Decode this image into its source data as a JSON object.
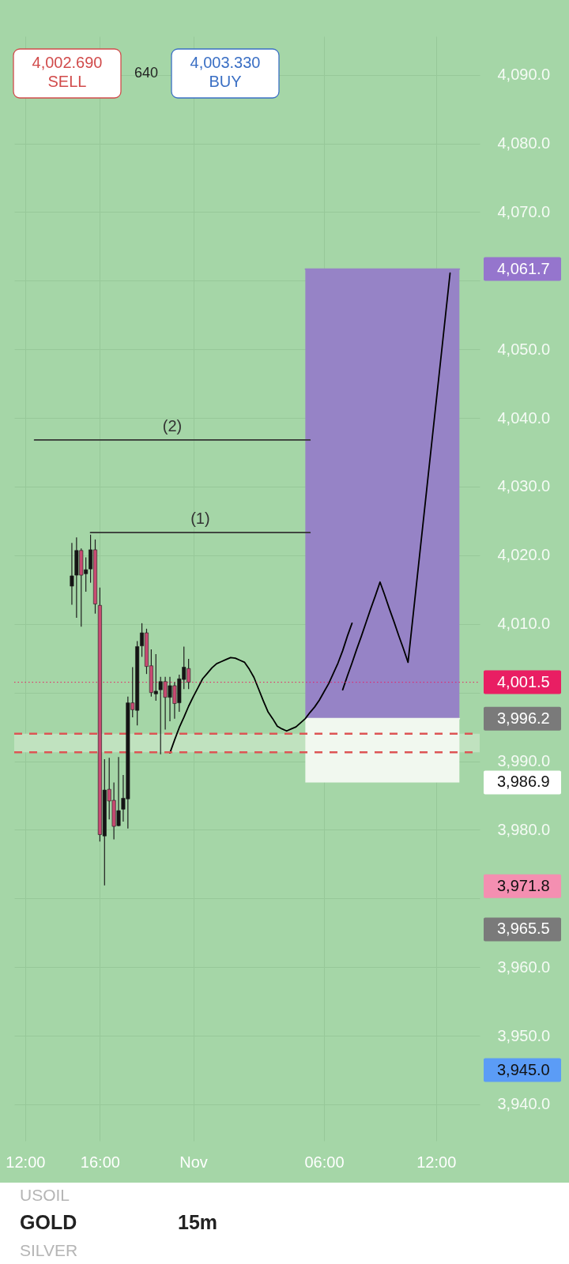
{
  "chart_data": {
    "type": "candlestick",
    "categories": [
      null,
      "12:00",
      null,
      null,
      null,
      null,
      null,
      null,
      null,
      null,
      null,
      null,
      null,
      null,
      null,
      null,
      null,
      "16:00",
      null,
      null,
      null,
      null,
      null,
      null,
      null,
      null,
      null,
      null,
      null,
      null,
      null,
      null,
      null,
      null,
      null,
      null,
      null,
      "Nov",
      null,
      null,
      null,
      null,
      null,
      null,
      null,
      null,
      null,
      null,
      null,
      null,
      null,
      null,
      null,
      null,
      null,
      null,
      null,
      null,
      null,
      null,
      null,
      null,
      null,
      null,
      null,
      "06:00",
      null,
      null,
      null,
      null,
      null,
      null,
      null,
      null,
      null,
      null,
      null,
      null,
      null,
      null,
      null,
      null,
      null,
      null,
      null,
      null,
      null,
      null,
      null,
      "12:00",
      null,
      null,
      null,
      null,
      null,
      null,
      null,
      null
    ],
    "ohlc": [
      null,
      null,
      null,
      null,
      null,
      null,
      null,
      null,
      null,
      null,
      null,
      [
        4015.5,
        4021.8,
        4012.8,
        4017.0
      ],
      [
        4017.1,
        4022.6,
        4010.9,
        4020.7
      ],
      [
        4020.7,
        4021.0,
        4009.6,
        4017.1
      ],
      [
        4017.3,
        4019.7,
        4014.7,
        4017.9
      ],
      [
        4018.0,
        4023.0,
        4016.0,
        4020.8
      ],
      [
        4020.8,
        4022.3,
        4011.5,
        4012.9
      ],
      [
        4012.7,
        4015.3,
        3978.3,
        3979.3
      ],
      [
        3979.1,
        3990.3,
        3971.9,
        3985.8
      ],
      [
        3985.9,
        3990.5,
        3981.5,
        3984.2
      ],
      [
        3984.3,
        3986.9,
        3978.6,
        3980.5
      ],
      [
        3980.6,
        3990.6,
        3980.5,
        3982.8
      ],
      [
        3983.0,
        3988.0,
        3981.2,
        3984.6
      ],
      [
        3984.5,
        3999.4,
        3980.2,
        3998.5
      ],
      [
        3998.5,
        4003.7,
        3996.4,
        3997.5
      ],
      [
        3997.4,
        4007.5,
        3995.2,
        4006.7
      ],
      [
        4006.8,
        4010.1,
        4005.2,
        4008.7
      ],
      [
        4008.7,
        4009.3,
        4002.7,
        4003.8
      ],
      [
        4003.9,
        4006.3,
        3999.4,
        4000.0
      ],
      [
        3999.8,
        4005.6,
        3998.8,
        4000.2
      ],
      [
        4000.4,
        4002.3,
        3991.0,
        4001.6
      ],
      [
        4001.6,
        4002.3,
        3994.6,
        3999.3
      ],
      [
        3999.3,
        4002.3,
        3995.8,
        4001.0
      ],
      [
        4001.0,
        4001.5,
        3996.2,
        3998.4
      ],
      [
        3998.5,
        4002.6,
        3997.2,
        4002.0
      ],
      [
        4001.9,
        4006.7,
        4000.5,
        4003.7
      ],
      [
        4003.5,
        4004.9,
        4000.5,
        4001.5
      ],
      null,
      null,
      null,
      null,
      null,
      null,
      null,
      null,
      null,
      null,
      null,
      null,
      null,
      null,
      null,
      null,
      null,
      null,
      null,
      null,
      null,
      null,
      null,
      null,
      null,
      null,
      null,
      null,
      null,
      null,
      null,
      null,
      null,
      null,
      null,
      null,
      null,
      null,
      null,
      null,
      null,
      null,
      null,
      null,
      null,
      null,
      null,
      null,
      null,
      null,
      null,
      null,
      null,
      null,
      null,
      null,
      null,
      null,
      null,
      null,
      null
    ],
    "colors": [
      null,
      null,
      null,
      null,
      null,
      null,
      null,
      null,
      null,
      null,
      null,
      "#141414",
      "#141414",
      "#c84a72",
      "#141414",
      "#141414",
      "#c84a72",
      "#c84a72",
      "#141414",
      "#c84a72",
      "#c84a72",
      "#141414",
      "#141414",
      "#141414",
      "#c84a72",
      "#141414",
      "#141414",
      "#c84a72",
      "#c84a72",
      "#141414",
      "#141414",
      "#c84a72",
      "#141414",
      "#c84a72",
      "#141414",
      "#141414",
      "#c84a72",
      null,
      null,
      null,
      null,
      null,
      null,
      null,
      null,
      null,
      null,
      null,
      null,
      null,
      null,
      null,
      null,
      null,
      null,
      null,
      null,
      null,
      null,
      null,
      null,
      null,
      null,
      null,
      null,
      null,
      null,
      null,
      null,
      null,
      null,
      null,
      null,
      null,
      null,
      null,
      null,
      null,
      null,
      null,
      null,
      null,
      null,
      null,
      null,
      null,
      null,
      null,
      null,
      null,
      null,
      null,
      null,
      null,
      null,
      null,
      null,
      null
    ],
    "series": [
      {
        "type": "line",
        "color": "#9683c6",
        "values": [
          null,
          null,
          null,
          null,
          null,
          null,
          null,
          null,
          null,
          null,
          null,
          null,
          null,
          null,
          null,
          null,
          null,
          null,
          null,
          null,
          null,
          null,
          null,
          null,
          null,
          null,
          null,
          null,
          null,
          null,
          null,
          null,
          null,
          null,
          null,
          null,
          null,
          null,
          null,
          null,
          null,
          null,
          null,
          null,
          null,
          null,
          null,
          null,
          null,
          null,
          null,
          null,
          null,
          null,
          null,
          null,
          null,
          null,
          null,
          null,
          null,
          4061.7,
          4061.7,
          4061.7,
          4061.7,
          4061.7,
          4061.7,
          4061.7,
          4061.7,
          4061.7,
          4061.7,
          4061.7,
          4061.7,
          4061.7,
          4061.7,
          4061.7,
          4061.7,
          4061.7,
          4061.7,
          4061.7,
          4061.7,
          4061.7,
          4061.7,
          4061.7,
          4061.7,
          4061.7,
          4061.7,
          4061.7,
          4061.7,
          4061.7,
          4061.7,
          4061.7,
          4061.7,
          4061.7,
          4061.7,
          null,
          null,
          null
        ],
        "upper": [
          null,
          null,
          null,
          null,
          null,
          null,
          null,
          null,
          null,
          null,
          null,
          null,
          null,
          null,
          null,
          null,
          null,
          null,
          null,
          null,
          null,
          null,
          null,
          null,
          null,
          null,
          null,
          null,
          null,
          null,
          null,
          null,
          null,
          null,
          null,
          null,
          null,
          null,
          null,
          null,
          null,
          null,
          null,
          null,
          null,
          null,
          null,
          null,
          null,
          null,
          null,
          null,
          null,
          null,
          null,
          null,
          null,
          null,
          null,
          null,
          null,
          4061.7,
          4061.7,
          4061.7,
          4061.7,
          4061.7,
          4061.7,
          4061.7,
          4061.7,
          4061.7,
          4061.7,
          4061.7,
          4061.7,
          4061.7,
          4061.7,
          4061.7,
          4061.7,
          4061.7,
          4061.7,
          4061.7,
          4061.7,
          4061.7,
          4061.7,
          4061.7,
          4061.7,
          4061.7,
          4061.7,
          4061.7,
          4061.7,
          4061.7,
          4061.7,
          4061.7,
          4061.7,
          4061.7,
          4061.7,
          null,
          null,
          null
        ],
        "lower": [
          null,
          null,
          null,
          null,
          null,
          null,
          null,
          null,
          null,
          null,
          null,
          null,
          null,
          null,
          null,
          null,
          null,
          null,
          null,
          null,
          null,
          null,
          null,
          null,
          null,
          null,
          null,
          null,
          null,
          null,
          null,
          null,
          null,
          null,
          null,
          null,
          null,
          null,
          null,
          null,
          null,
          null,
          null,
          null,
          null,
          null,
          null,
          null,
          null,
          null,
          null,
          null,
          null,
          null,
          null,
          null,
          null,
          null,
          null,
          null,
          null,
          3996.2,
          3996.2,
          3996.2,
          3996.2,
          3996.2,
          3996.2,
          3996.2,
          3996.2,
          3996.2,
          3996.2,
          3996.2,
          3996.2,
          3996.2,
          3996.2,
          3996.2,
          3996.2,
          3996.2,
          3996.2,
          3996.2,
          3996.2,
          3996.2,
          3996.2,
          3996.2,
          3996.2,
          3996.2,
          3996.2,
          3996.2,
          3996.2,
          3996.2,
          3996.2,
          3996.2,
          3996.2,
          3996.2,
          3996.2,
          null,
          null,
          null
        ]
      },
      {
        "type": "line",
        "color": "#f1f8ef",
        "values": [
          null,
          null,
          null,
          null,
          null,
          null,
          null,
          null,
          null,
          null,
          null,
          null,
          null,
          null,
          null,
          null,
          null,
          null,
          null,
          null,
          null,
          null,
          null,
          null,
          null,
          null,
          null,
          null,
          null,
          null,
          null,
          null,
          null,
          null,
          null,
          null,
          null,
          null,
          null,
          null,
          null,
          null,
          null,
          null,
          null,
          null,
          null,
          null,
          null,
          null,
          null,
          null,
          null,
          null,
          null,
          null,
          null,
          null,
          null,
          null,
          null,
          3996.2,
          3996.2,
          3996.2,
          3996.2,
          3996.2,
          3996.2,
          3996.2,
          3996.2,
          3996.2,
          3996.2,
          3996.2,
          3996.2,
          3996.2,
          3996.2,
          3996.2,
          3996.2,
          3996.2,
          3996.2,
          3996.2,
          3996.2,
          3996.2,
          3996.2,
          3996.2,
          3996.2,
          3996.2,
          3996.2,
          3996.2,
          3996.2,
          3996.2,
          3996.2,
          3996.2,
          3996.2,
          3996.2,
          3996.2,
          null,
          null,
          null
        ],
        "upper": [
          null,
          null,
          null,
          null,
          null,
          null,
          null,
          null,
          null,
          null,
          null,
          null,
          null,
          null,
          null,
          null,
          null,
          null,
          null,
          null,
          null,
          null,
          null,
          null,
          null,
          null,
          null,
          null,
          null,
          null,
          null,
          null,
          null,
          null,
          null,
          null,
          null,
          null,
          null,
          null,
          null,
          null,
          null,
          null,
          null,
          null,
          null,
          null,
          null,
          null,
          null,
          null,
          null,
          null,
          null,
          null,
          null,
          null,
          null,
          null,
          null,
          3996.2,
          3996.2,
          3996.2,
          3996.2,
          3996.2,
          3996.2,
          3996.2,
          3996.2,
          3996.2,
          3996.2,
          3996.2,
          3996.2,
          3996.2,
          3996.2,
          3996.2,
          3996.2,
          3996.2,
          3996.2,
          3996.2,
          3996.2,
          3996.2,
          3996.2,
          3996.2,
          3996.2,
          3996.2,
          3996.2,
          3996.2,
          3996.2,
          3996.2,
          3996.2,
          3996.2,
          3996.2,
          3996.2,
          3996.2,
          null,
          null,
          null
        ],
        "lower": [
          null,
          null,
          null,
          null,
          null,
          null,
          null,
          null,
          null,
          null,
          null,
          null,
          null,
          null,
          null,
          null,
          null,
          null,
          null,
          null,
          null,
          null,
          null,
          null,
          null,
          null,
          null,
          null,
          null,
          null,
          null,
          null,
          null,
          null,
          null,
          null,
          null,
          null,
          null,
          null,
          null,
          null,
          null,
          null,
          null,
          null,
          null,
          null,
          null,
          null,
          null,
          null,
          null,
          null,
          null,
          null,
          null,
          null,
          null,
          null,
          null,
          3986.9,
          3986.9,
          3986.9,
          3986.9,
          3986.9,
          3986.9,
          3986.9,
          3986.9,
          3986.9,
          3986.9,
          3986.9,
          3986.9,
          3986.9,
          3986.9,
          3986.9,
          3986.9,
          3986.9,
          3986.9,
          3986.9,
          3986.9,
          3986.9,
          3986.9,
          3986.9,
          3986.9,
          3986.9,
          3986.9,
          3986.9,
          3986.9,
          3986.9,
          3986.9,
          3986.9,
          3986.9,
          3986.9,
          3986.9,
          null,
          null,
          null
        ]
      },
      {
        "name": "(2)",
        "type": "line",
        "color": "#333333",
        "values": [
          null,
          null,
          null,
          4036.8,
          4036.8,
          4036.8,
          4036.8,
          4036.8,
          4036.8,
          4036.8,
          4036.8,
          4036.8,
          4036.8,
          4036.8,
          4036.8,
          4036.8,
          4036.8,
          4036.8,
          4036.8,
          4036.8,
          4036.8,
          4036.8,
          4036.8,
          4036.8,
          4036.8,
          4036.8,
          4036.8,
          4036.8,
          4036.8,
          4036.8,
          4036.8,
          4036.8,
          4036.8,
          4036.8,
          4036.8,
          4036.8,
          4036.8,
          4036.8,
          4036.8,
          4036.8,
          4036.8,
          4036.8,
          4036.8,
          4036.8,
          4036.8,
          4036.8,
          4036.8,
          4036.8,
          4036.8,
          4036.8,
          4036.8,
          4036.8,
          4036.8,
          4036.8,
          4036.8,
          4036.8,
          4036.8,
          4036.8,
          4036.8,
          4036.8,
          4036.8,
          4036.8,
          4036.8,
          null,
          null,
          null,
          null,
          null,
          null,
          null,
          null,
          null,
          null,
          null,
          null,
          null,
          null,
          null,
          null,
          null,
          null,
          null,
          null,
          null,
          null,
          null,
          null,
          null,
          null,
          null,
          null,
          null,
          null,
          null,
          null,
          null,
          null,
          null
        ]
      },
      {
        "name": "(1)",
        "type": "line",
        "color": "#333333",
        "values": [
          null,
          null,
          null,
          null,
          null,
          null,
          null,
          null,
          null,
          null,
          null,
          null,
          null,
          null,
          null,
          4023.3,
          4023.3,
          4023.3,
          4023.3,
          4023.3,
          4023.3,
          4023.3,
          4023.3,
          4023.3,
          4023.3,
          4023.3,
          4023.3,
          4023.3,
          4023.3,
          4023.3,
          4023.3,
          4023.3,
          4023.3,
          4023.3,
          4023.3,
          4023.3,
          4023.3,
          4023.3,
          4023.3,
          4023.3,
          4023.3,
          4023.3,
          4023.3,
          4023.3,
          4023.3,
          4023.3,
          4023.3,
          4023.3,
          4023.3,
          4023.3,
          4023.3,
          4023.3,
          4023.3,
          4023.3,
          4023.3,
          4023.3,
          4023.3,
          4023.3,
          4023.3,
          4023.3,
          4023.3,
          4023.3,
          4023.3,
          null,
          null,
          null,
          null,
          null,
          null,
          null,
          null,
          null,
          null,
          null,
          null,
          null,
          null,
          null,
          null,
          null,
          null,
          null,
          null,
          null,
          null,
          null,
          null,
          null,
          null,
          null,
          null,
          null,
          null,
          null,
          null,
          null,
          null,
          null
        ]
      },
      {
        "type": "line",
        "color": "#000000",
        "values": [
          null,
          null,
          null,
          null,
          null,
          null,
          null,
          null,
          null,
          null,
          null,
          null,
          null,
          null,
          null,
          null,
          null,
          null,
          null,
          null,
          null,
          null,
          null,
          null,
          null,
          null,
          null,
          null,
          null,
          null,
          null,
          null,
          3991.2,
          3993.1,
          3994.9,
          3996.4,
          3998.0,
          3999.4,
          4000.7,
          4002.0,
          4002.8,
          4003.6,
          4004.2,
          4004.5,
          4004.8,
          4005.1,
          4005.0,
          4004.7,
          4004.4,
          4003.4,
          4002.2,
          4000.5,
          3998.8,
          3997.2,
          3996.2,
          3995.1,
          3994.7,
          3994.4,
          3994.7,
          3995.0,
          3995.6,
          3996.2,
          3997.1,
          3997.9,
          3998.9,
          4000.1,
          4001.3,
          4002.8,
          4004.3,
          4006.1,
          4008.2,
          4010.1,
          null,
          null,
          null,
          null,
          null,
          null,
          null,
          null,
          null,
          null,
          null,
          null,
          null,
          null,
          null,
          null,
          null,
          null,
          null,
          null,
          null,
          null,
          null,
          null,
          null,
          null
        ]
      },
      {
        "type": "line",
        "color": "#000000",
        "values": [
          null,
          null,
          null,
          null,
          null,
          null,
          null,
          null,
          null,
          null,
          null,
          null,
          null,
          null,
          null,
          null,
          null,
          null,
          null,
          null,
          null,
          null,
          null,
          null,
          null,
          null,
          null,
          null,
          null,
          null,
          null,
          null,
          null,
          null,
          null,
          null,
          null,
          null,
          null,
          null,
          null,
          null,
          null,
          null,
          null,
          null,
          null,
          null,
          null,
          null,
          null,
          null,
          null,
          null,
          null,
          null,
          null,
          null,
          null,
          null,
          null,
          null,
          null,
          null,
          null,
          null,
          null,
          null,
          null,
          4000.4,
          4002.4,
          4004.3,
          4006.3,
          4008.2,
          4010.2,
          4012.2,
          4014.1,
          4016.1,
          4014.2,
          4012.2,
          4010.3,
          4008.3,
          4006.4,
          4004.4,
          4010.7,
          4017.0,
          4023.3,
          4029.6,
          4035.9,
          4042.2,
          4048.5,
          4054.8,
          4061.1,
          null,
          null,
          null,
          null,
          null
        ]
      }
    ],
    "ylim": [
      3934.7,
      4095.6
    ],
    "yticks": [
      {
        "value": 3940,
        "label": "3,940.0"
      },
      {
        "value": 3950,
        "label": "3,950.0"
      },
      {
        "value": 3960,
        "label": "3,960.0"
      },
      {
        "value": 3970,
        "label": null
      },
      {
        "value": 3980,
        "label": "3,980.0"
      },
      {
        "value": 3990,
        "label": "3,990.0"
      },
      {
        "value": 4000,
        "label": null
      },
      {
        "value": 4010,
        "label": "4,010.0"
      },
      {
        "value": 4020,
        "label": "4,020.0"
      },
      {
        "value": 4030,
        "label": "4,030.0"
      },
      {
        "value": 4040,
        "label": "4,040.0"
      },
      {
        "value": 4050,
        "label": "4,050.0"
      },
      {
        "value": 4060,
        "label": null
      },
      {
        "value": 4070,
        "label": "4,070.0"
      },
      {
        "value": 4080,
        "label": "4,080.0"
      },
      {
        "value": 4090,
        "label": "4,090.0"
      }
    ],
    "grid": true,
    "bands": [
      {
        "axis": "y",
        "from": 3991.3,
        "to": 3994.0,
        "color": "#c0e2bf"
      }
    ],
    "ref_lines": [
      {
        "axis": "y",
        "value": 4001.5,
        "label": "4,001.5",
        "color": "#e91e63",
        "line_style": "dotted"
      },
      {
        "axis": "y",
        "value": 3994.0,
        "color": "#dd5555",
        "line_style": "dashed"
      },
      {
        "axis": "y",
        "value": 3991.3,
        "color": "#dd5555",
        "line_style": "dashed"
      }
    ],
    "annotations": [
      "4,002.690",
      "SELL",
      "640",
      "4,003.330",
      "BUY",
      "USOIL",
      "GOLD",
      "SILVER",
      "15m",
      "4,061.7",
      "3,996.2",
      "3,986.9",
      "3,971.8",
      "3,965.5",
      "3,945.0"
    ]
  }
}
